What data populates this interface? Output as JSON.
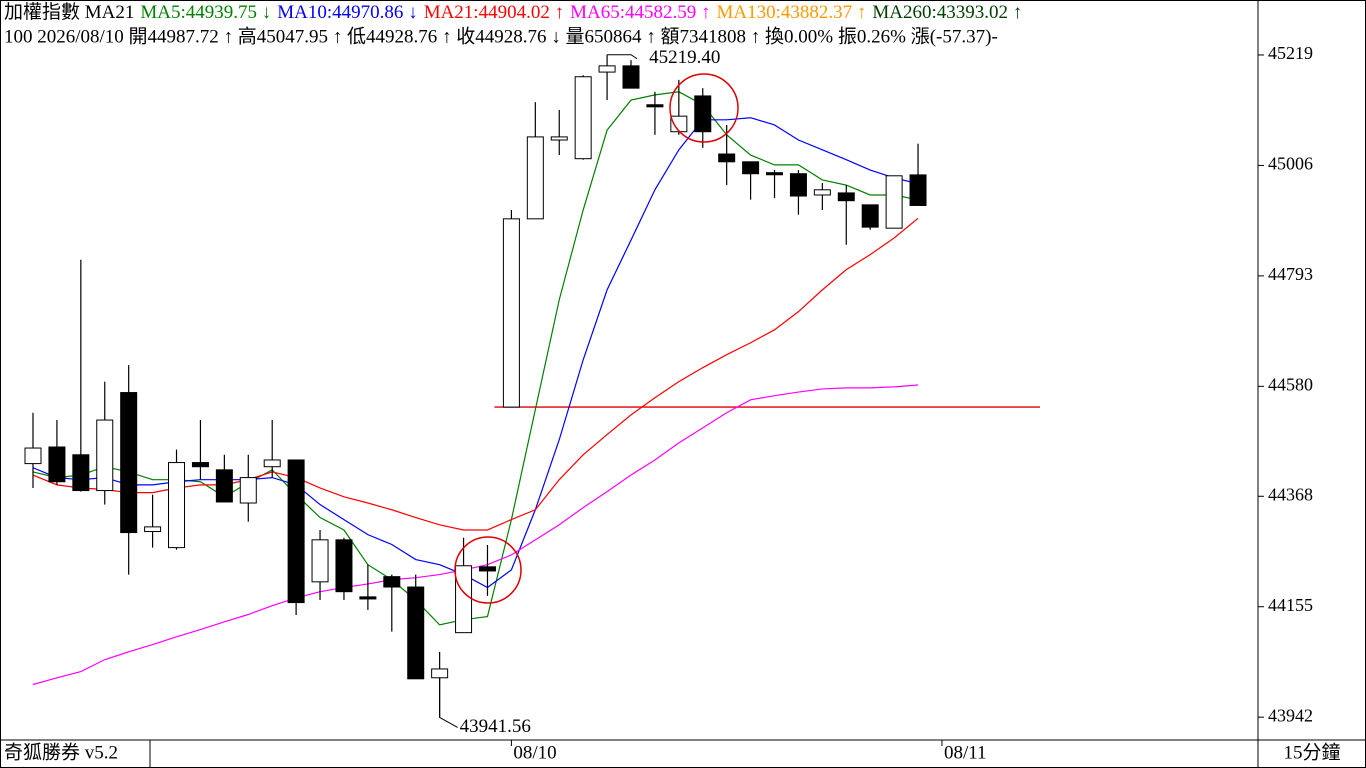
{
  "chart_data": {
    "type": "candlestick",
    "header_line1": [
      {
        "text": "加權指數 MA21",
        "color": "#000000"
      },
      {
        "text": "MA5:44939.75 ↓",
        "color": "#008000"
      },
      {
        "text": "MA10:44970.86 ↓",
        "color": "#0000ff"
      },
      {
        "text": "MA21:44904.02 ↑",
        "color": "#ff0000"
      },
      {
        "text": "MA65:44582.59 ↑",
        "color": "#ff00ff"
      },
      {
        "text": "MA130:43882.37 ↑",
        "color": "#ff9900"
      },
      {
        "text": "MA260:43393.02 ↑",
        "color": "#004000"
      }
    ],
    "header_line2": "100 2026/08/10 開44987.72 ↑ 高45047.95 ↑ 低44928.76 ↑ 收44928.76 ↓ 量650864 ↑ 額7341808 ↑ 換0.00% 振0.26% 漲(-57.37)-",
    "footer_left": "奇狐勝券 v5.2",
    "footer_right": "15分鐘",
    "categories": [
      null,
      null,
      null,
      null,
      null,
      null,
      null,
      null,
      null,
      null,
      null,
      null,
      null,
      null,
      null,
      null,
      null,
      null,
      null,
      null,
      "08/10",
      null,
      null,
      null,
      null,
      null,
      null,
      null,
      null,
      null,
      null,
      null,
      null,
      null,
      null,
      null,
      null,
      null
    ],
    "next_label": "08/11",
    "open": [
      44431,
      44463,
      44448,
      44379,
      44568,
      44300,
      44269,
      44433,
      44419,
      44355,
      44425,
      44438,
      44203,
      44284,
      44174,
      44213,
      44193,
      44018,
      44105,
      44232,
      44540,
      44903,
      45055,
      45019,
      45186,
      45198,
      45123,
      45071,
      45140,
      45028,
      45013,
      44992,
      44990,
      44949,
      44953,
      44930,
      44885,
      44987.72
    ],
    "high": [
      44529,
      44515,
      44824,
      44589,
      44621,
      44371,
      44458,
      44515,
      44448,
      44448,
      44515,
      44438,
      44303,
      44288,
      44236,
      44217,
      44217,
      44068,
      44288,
      44274,
      44920,
      45128,
      45113,
      45180,
      45219.4,
      45209,
      45148,
      45171,
      45155,
      45084,
      45013,
      44997,
      44997,
      44972,
      44968,
      44930,
      44986,
      45047.95
    ],
    "low": [
      44384,
      44390,
      44377,
      44352,
      44217,
      44269,
      44265,
      44400,
      44357,
      44319,
      44404,
      44139,
      44168,
      44168,
      44149,
      44107,
      44016,
      43941.56,
      44105,
      44176,
      44540,
      44903,
      45026,
      45017,
      45132,
      45155,
      45065,
      45065,
      45040,
      44968,
      44940,
      44943,
      44911,
      44920,
      44853,
      44882,
      44885,
      44928.76
    ],
    "close": [
      44461,
      44396,
      44379,
      44515,
      44298,
      44309,
      44433,
      44425,
      44357,
      44404,
      44438,
      44163,
      44284,
      44184,
      44170,
      44193,
      44016,
      44035,
      44234,
      44224,
      44903,
      45061,
      45061,
      45177,
      45198,
      45155,
      45119,
      45101,
      45071,
      45013,
      44990,
      44988,
      44947,
      44959,
      44938,
      44887,
      44986,
      44928.76
    ],
    "up_color": "#ffffff",
    "down_color": "#000000",
    "series": [
      {
        "color": "#008000",
        "values": [
          44415,
          44404,
          44409,
          44425,
          44415,
          44400,
          44400,
          44396,
          44367,
          44394,
          44419,
          44371,
          44327,
          44303,
          44236,
          44207,
          44168,
          44120,
          44130,
          44136,
          44323,
          44535,
          44747,
          44920,
          45074,
          45132,
          45142,
          45148,
          45123,
          45065,
          45026,
          45007,
          45007,
          44978,
          44968,
          44949,
          44949,
          44939.75
        ]
      },
      {
        "color": "#0000ff",
        "values": [
          44423,
          44404,
          44400,
          44404,
          44390,
          44390,
          44396,
          44400,
          44400,
          44400,
          44404,
          44390,
          44352,
          44323,
          44294,
          44275,
          44246,
          44236,
          44217,
          44192,
          44226,
          44342,
          44477,
          44631,
          44766,
          44862,
          44959,
          45036,
          45094,
          45094,
          45098,
          45084,
          45055,
          45036,
          45017,
          44997,
          44982,
          44970.86
        ]
      },
      {
        "color": "#ff0000",
        "values": [
          44409,
          44390,
          44384,
          44381,
          44375,
          44375,
          44384,
          44390,
          44390,
          44400,
          44415,
          44404,
          44384,
          44367,
          44355,
          44342,
          44327,
          44313,
          44303,
          44303,
          44323,
          44342,
          44400,
          44448,
          44487,
          44525,
          44558,
          44589,
          44616,
          44641,
          44664,
          44689,
          44724,
          44766,
          44805,
          44834,
          44866,
          44904.02
        ]
      },
      {
        "color": "#ff00ff",
        "values": [
          44005,
          44018,
          44030,
          44053,
          44068,
          44082,
          44097,
          44111,
          44126,
          44140,
          44157,
          44172,
          44184,
          44192,
          44199,
          44207,
          44211,
          44217,
          44226,
          44236,
          44255,
          44284,
          44313,
          44346,
          44377,
          44409,
          44438,
          44471,
          44500,
          44529,
          44554,
          44562,
          44569,
          44575,
          44577,
          44577,
          44579,
          44582.59
        ]
      }
    ],
    "reference_line": {
      "value": 44540,
      "color": "#e00000"
    },
    "annotations": [
      {
        "value": 45219.4,
        "label": "45219.40",
        "index": 24
      },
      {
        "value": 43941.56,
        "label": "43941.56",
        "index": 17
      }
    ],
    "ylim": [
      43898,
      45325
    ],
    "yticks": [
      45219,
      45006,
      44793,
      44580,
      44368,
      44155,
      43942
    ]
  }
}
